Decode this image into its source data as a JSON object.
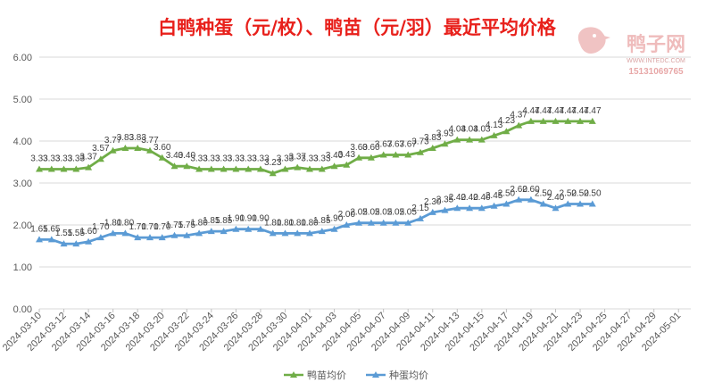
{
  "chart_data": {
    "type": "line",
    "title": "白鸭种蛋（元/枚）、鸭苗（元/羽）最近平均价格",
    "ylim": [
      0,
      6
    ],
    "yticks": [
      "0.00",
      "1.00",
      "2.00",
      "3.00",
      "4.00",
      "5.00",
      "6.00"
    ],
    "x_start": "2024-03-10",
    "x_end": "2024-05-02",
    "xtick_labels": [
      "2024-03-10",
      "2024-03-12",
      "2024-03-14",
      "2024-03-16",
      "2024-03-18",
      "2024-03-20",
      "2024-03-22",
      "2024-03-24",
      "2024-03-26",
      "2024-03-28",
      "2024-03-30",
      "2024-04-01",
      "2024-04-03",
      "2024-04-05",
      "2024-04-07",
      "2024-04-09",
      "2024-04-11",
      "2024-04-13",
      "2024-04-15",
      "2024-04-17",
      "2024-04-19",
      "2024-04-21",
      "2024-04-23",
      "2024-04-25",
      "2024-04-27",
      "2024-04-29",
      "2024-05-01"
    ],
    "grid": true,
    "legend_position": "bottom",
    "series": [
      {
        "name": "鸭苗均价",
        "color": "#70ad47",
        "marker": "triangle",
        "start_date": "2024-03-10",
        "values": [
          3.33,
          3.33,
          3.33,
          3.33,
          3.37,
          3.57,
          3.77,
          3.83,
          3.83,
          3.77,
          3.6,
          3.4,
          3.4,
          3.33,
          3.33,
          3.33,
          3.33,
          3.33,
          3.33,
          3.23,
          3.33,
          3.37,
          3.33,
          3.33,
          3.4,
          3.43,
          3.6,
          3.6,
          3.67,
          3.67,
          3.67,
          3.73,
          3.83,
          3.93,
          4.03,
          4.03,
          4.03,
          4.13,
          4.23,
          4.37,
          4.47,
          4.47,
          4.47,
          4.47,
          4.47,
          4.47
        ]
      },
      {
        "name": "种蛋均价",
        "color": "#5b9bd5",
        "marker": "triangle",
        "start_date": "2024-03-10",
        "values": [
          1.65,
          1.65,
          1.55,
          1.55,
          1.6,
          1.7,
          1.8,
          1.8,
          1.7,
          1.7,
          1.7,
          1.75,
          1.75,
          1.8,
          1.85,
          1.85,
          1.9,
          1.9,
          1.9,
          1.8,
          1.8,
          1.8,
          1.8,
          1.85,
          1.9,
          2.0,
          2.05,
          2.05,
          2.05,
          2.05,
          2.05,
          2.15,
          2.3,
          2.35,
          2.4,
          2.4,
          2.4,
          2.45,
          2.5,
          2.6,
          2.6,
          2.5,
          2.4,
          2.5,
          2.5,
          2.5
        ]
      }
    ]
  },
  "watermark": {
    "brand": "鸭子网",
    "site": "WWW.INTEDC.COM",
    "phone": "15131069765"
  }
}
